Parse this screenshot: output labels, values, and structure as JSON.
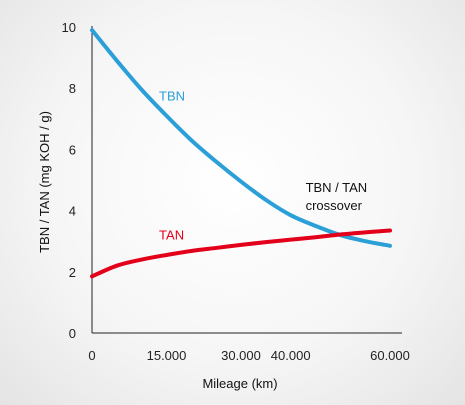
{
  "chart_data": {
    "type": "line",
    "xlabel": "Mileage (km)",
    "ylabel": "TBN / TAN (mg KOH / g)",
    "xlim": [
      0,
      60000
    ],
    "ylim": [
      0,
      10
    ],
    "x_ticks": [
      {
        "value": 0,
        "label": "0"
      },
      {
        "value": 15000,
        "label": "15.000"
      },
      {
        "value": 30000,
        "label": "30.000"
      },
      {
        "value": 40000,
        "label": "40.000"
      },
      {
        "value": 60000,
        "label": "60.000"
      }
    ],
    "y_ticks": [
      0,
      2,
      4,
      6,
      8,
      10
    ],
    "grid": false,
    "series": [
      {
        "name": "TBN",
        "color": "#2a9fd8",
        "label_pos": {
          "x": 13500,
          "y": 7.6
        },
        "points": [
          [
            0,
            9.9
          ],
          [
            5000,
            8.9
          ],
          [
            10000,
            7.95
          ],
          [
            15000,
            7.1
          ],
          [
            20000,
            6.3
          ],
          [
            25000,
            5.6
          ],
          [
            30000,
            4.95
          ],
          [
            35000,
            4.35
          ],
          [
            40000,
            3.85
          ],
          [
            45000,
            3.5
          ],
          [
            50000,
            3.2
          ],
          [
            55000,
            3.0
          ],
          [
            60000,
            2.85
          ]
        ]
      },
      {
        "name": "TAN",
        "color": "#e3001b",
        "label_pos": {
          "x": 13500,
          "y": 3.05
        },
        "points": [
          [
            0,
            1.85
          ],
          [
            5000,
            2.2
          ],
          [
            10000,
            2.4
          ],
          [
            15000,
            2.55
          ],
          [
            20000,
            2.68
          ],
          [
            25000,
            2.78
          ],
          [
            30000,
            2.88
          ],
          [
            35000,
            2.97
          ],
          [
            40000,
            3.05
          ],
          [
            45000,
            3.13
          ],
          [
            50000,
            3.22
          ],
          [
            55000,
            3.29
          ],
          [
            60000,
            3.35
          ]
        ]
      }
    ],
    "annotation": {
      "lines": [
        "TBN / TAN",
        "crossover"
      ],
      "x": 43000,
      "y": 4.6
    }
  }
}
